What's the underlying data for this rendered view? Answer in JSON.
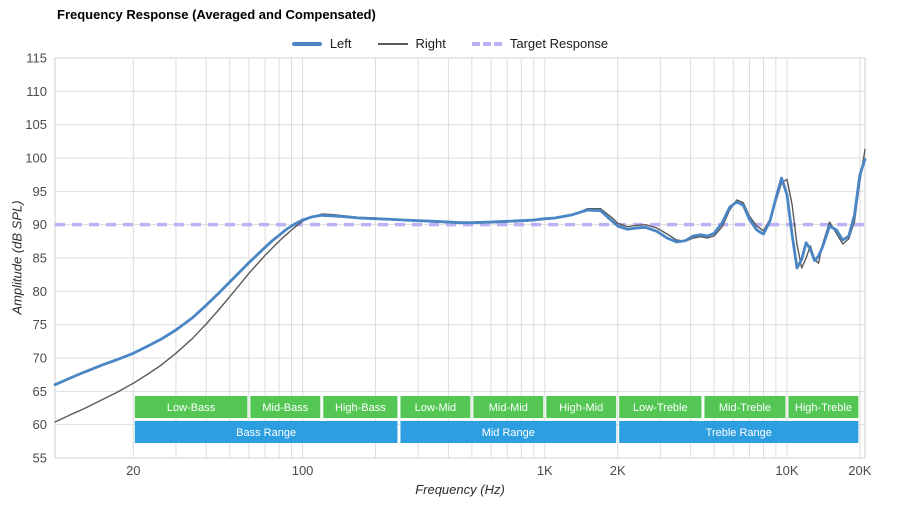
{
  "title": "Frequency Response (Averaged and Compensated)",
  "legend": {
    "items": [
      {
        "label": "Left"
      },
      {
        "label": "Right"
      },
      {
        "label": "Target Response"
      }
    ]
  },
  "axes": {
    "x_label": "Frequency (Hz)",
    "y_label": "Amplitude (dB SPL)"
  },
  "colors": {
    "left": "#4a86c6",
    "right": "#5a5a5a",
    "target": "#bab2f4",
    "sub_band": "#53c653",
    "range_band": "#2d9fe0",
    "grid": "#dddddd",
    "border": "#cfcfcf"
  },
  "chart_data": {
    "type": "line",
    "title": "Frequency Response (Averaged and Compensated)",
    "xlabel": "Frequency (Hz)",
    "ylabel": "Amplitude (dB SPL)",
    "x_scale": "log",
    "xlim": [
      9.5,
      21000
    ],
    "ylim": [
      55,
      115
    ],
    "grid": true,
    "legend_position": "top",
    "y_ticks": [
      55,
      60,
      65,
      70,
      75,
      80,
      85,
      90,
      95,
      100,
      105,
      110,
      115
    ],
    "x_gridlines": [
      20,
      30,
      40,
      50,
      60,
      70,
      80,
      90,
      100,
      200,
      300,
      400,
      500,
      600,
      700,
      800,
      900,
      1000,
      2000,
      3000,
      4000,
      5000,
      6000,
      7000,
      8000,
      9000,
      10000,
      20000
    ],
    "x_ticks": [
      {
        "value": 20,
        "label": "20"
      },
      {
        "value": 100,
        "label": "100"
      },
      {
        "value": 1000,
        "label": "1K"
      },
      {
        "value": 2000,
        "label": "2K"
      },
      {
        "value": 10000,
        "label": "10K"
      },
      {
        "value": 20000,
        "label": "20K"
      }
    ],
    "target_response_db": 90,
    "x": [
      9.5,
      11,
      12,
      13,
      15,
      17,
      20,
      23,
      26,
      30,
      35,
      40,
      45,
      50,
      55,
      60,
      65,
      70,
      75,
      80,
      85,
      90,
      95,
      100,
      110,
      120,
      135,
      150,
      170,
      200,
      230,
      260,
      300,
      350,
      400,
      450,
      500,
      600,
      700,
      800,
      900,
      1000,
      1100,
      1300,
      1500,
      1700,
      1900,
      2000,
      2200,
      2400,
      2600,
      2900,
      3200,
      3500,
      3800,
      4100,
      4400,
      4700,
      5000,
      5400,
      5800,
      6200,
      6600,
      7000,
      7500,
      8000,
      8500,
      9000,
      9500,
      10000,
      10500,
      11000,
      11500,
      12000,
      12500,
      13000,
      13500,
      14000,
      15000,
      16000,
      17000,
      18000,
      19000,
      20000,
      21000
    ],
    "series": [
      {
        "name": "Left",
        "values": [
          66.0,
          67.0,
          67.6,
          68.1,
          69.0,
          69.7,
          70.7,
          71.8,
          72.8,
          74.2,
          76.0,
          77.9,
          79.7,
          81.4,
          82.9,
          84.3,
          85.5,
          86.6,
          87.6,
          88.4,
          89.2,
          89.8,
          90.3,
          90.7,
          91.2,
          91.4,
          91.3,
          91.2,
          91.0,
          90.9,
          90.8,
          90.7,
          90.6,
          90.5,
          90.4,
          90.3,
          90.3,
          90.4,
          90.5,
          90.6,
          90.7,
          90.9,
          91.0,
          91.5,
          92.2,
          92.1,
          90.5,
          89.8,
          89.3,
          89.5,
          89.6,
          89.0,
          88.0,
          87.4,
          87.6,
          88.3,
          88.5,
          88.3,
          88.7,
          90.3,
          92.6,
          93.4,
          92.9,
          90.8,
          89.2,
          88.6,
          90.5,
          94.0,
          97.0,
          94.5,
          88.5,
          83.5,
          84.8,
          87.3,
          86.3,
          84.6,
          85.3,
          86.6,
          89.8,
          89.2,
          87.7,
          88.3,
          91.5,
          97.5,
          99.8
        ]
      },
      {
        "name": "Right",
        "values": [
          60.4,
          61.5,
          62.1,
          62.7,
          63.8,
          64.8,
          66.2,
          67.6,
          68.9,
          70.7,
          72.9,
          75.1,
          77.2,
          79.2,
          81.0,
          82.7,
          84.1,
          85.4,
          86.5,
          87.5,
          88.4,
          89.2,
          89.9,
          90.5,
          91.2,
          91.6,
          91.5,
          91.3,
          91.1,
          91.0,
          90.8,
          90.7,
          90.6,
          90.4,
          90.3,
          90.2,
          90.2,
          90.3,
          90.4,
          90.5,
          90.6,
          90.8,
          90.9,
          91.4,
          92.4,
          92.4,
          91.0,
          90.2,
          89.7,
          89.9,
          90.0,
          89.5,
          88.6,
          87.7,
          87.5,
          88.0,
          88.2,
          88.0,
          88.3,
          89.7,
          92.2,
          93.7,
          93.3,
          91.3,
          89.8,
          89.1,
          90.8,
          93.5,
          96.3,
          96.8,
          93.0,
          87.0,
          83.5,
          85.0,
          86.8,
          84.8,
          84.2,
          87.0,
          90.4,
          88.7,
          87.1,
          87.9,
          90.5,
          96.5,
          101.3
        ]
      }
    ],
    "bands": {
      "sub_bands": [
        {
          "label": "Low-Bass",
          "from": 20,
          "to": 60
        },
        {
          "label": "Mid-Bass",
          "from": 60,
          "to": 120
        },
        {
          "label": "High-Bass",
          "from": 120,
          "to": 250
        },
        {
          "label": "Low-Mid",
          "from": 250,
          "to": 500
        },
        {
          "label": "Mid-Mid",
          "from": 500,
          "to": 1000
        },
        {
          "label": "High-Mid",
          "from": 1000,
          "to": 2000
        },
        {
          "label": "Low-Treble",
          "from": 2000,
          "to": 4500
        },
        {
          "label": "Mid-Treble",
          "from": 4500,
          "to": 10000
        },
        {
          "label": "High-Treble",
          "from": 10000,
          "to": 20000
        }
      ],
      "ranges": [
        {
          "label": "Bass Range",
          "from": 20,
          "to": 250
        },
        {
          "label": "Mid Range",
          "from": 250,
          "to": 2000
        },
        {
          "label": "Treble Range",
          "from": 2000,
          "to": 20000
        }
      ]
    }
  }
}
